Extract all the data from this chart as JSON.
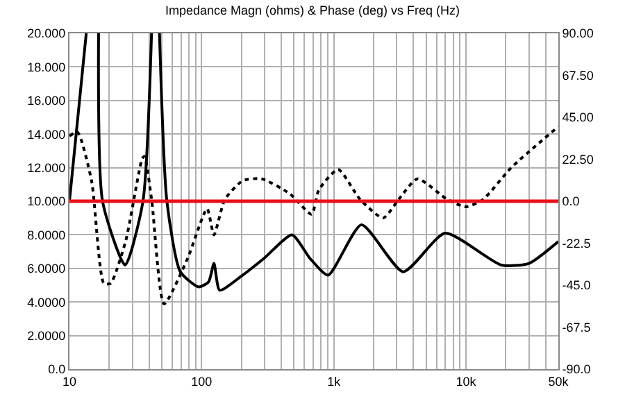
{
  "chart_data": {
    "type": "line",
    "title": "Impedance Magn (ohms) & Phase (deg) vs Freq (Hz)",
    "log": "x",
    "grid": true,
    "marker": "none",
    "xlim": [
      10,
      50000
    ],
    "xticks": [
      10,
      {
        "value": 20,
        "label": null
      },
      {
        "value": 30,
        "label": null
      },
      {
        "value": 40,
        "label": null
      },
      {
        "value": 50,
        "label": null
      },
      {
        "value": 60,
        "label": null
      },
      {
        "value": 70,
        "label": null
      },
      {
        "value": 80,
        "label": null
      },
      {
        "value": 90,
        "label": null
      },
      100,
      {
        "value": 200,
        "label": null
      },
      {
        "value": 300,
        "label": null
      },
      {
        "value": 400,
        "label": null
      },
      {
        "value": 500,
        "label": null
      },
      {
        "value": 600,
        "label": null
      },
      {
        "value": 700,
        "label": null
      },
      {
        "value": 800,
        "label": null
      },
      {
        "value": 900,
        "label": null
      },
      {
        "value": 1000,
        "label": "1k"
      },
      {
        "value": 2000,
        "label": null
      },
      {
        "value": 3000,
        "label": null
      },
      {
        "value": 4000,
        "label": null
      },
      {
        "value": 5000,
        "label": null
      },
      {
        "value": 6000,
        "label": null
      },
      {
        "value": 7000,
        "label": null
      },
      {
        "value": 8000,
        "label": null
      },
      {
        "value": 9000,
        "label": null
      },
      {
        "value": 10000,
        "label": "10k"
      },
      {
        "value": 20000,
        "label": null
      },
      {
        "value": 30000,
        "label": null
      },
      {
        "value": 40000,
        "label": null
      },
      {
        "value": 50000,
        "label": "50k"
      }
    ],
    "ylim": [
      0,
      20
    ],
    "yticks": [
      {
        "value": 0,
        "label": "0.0"
      },
      {
        "value": 2,
        "label": "2.0000"
      },
      {
        "value": 4,
        "label": "4.0000"
      },
      {
        "value": 6,
        "label": "6.0000"
      },
      {
        "value": 8,
        "label": "8.0000"
      },
      {
        "value": 10,
        "label": "10.000"
      },
      {
        "value": 12,
        "label": "12.000"
      },
      {
        "value": 14,
        "label": "14.000"
      },
      {
        "value": 16,
        "label": "16.000"
      },
      {
        "value": 18,
        "label": "18.000"
      },
      {
        "value": 20,
        "label": "20.000"
      }
    ],
    "y2lim": [
      -90,
      90
    ],
    "y2ticks": [
      {
        "value": -90,
        "label": "-90.0"
      },
      {
        "value": -67.5,
        "label": "-67.5"
      },
      {
        "value": -45,
        "label": "-45.0"
      },
      {
        "value": -22.5,
        "label": "-22.5"
      },
      {
        "value": 0,
        "label": "0.0"
      },
      {
        "value": 22.5,
        "label": "22.50"
      },
      {
        "value": 45,
        "label": "45.00"
      },
      {
        "value": 67.5,
        "label": "67.50"
      },
      {
        "value": 90,
        "label": "90.00"
      }
    ],
    "ref_lines": [
      {
        "axis": "y",
        "value": 10,
        "color": "#e8101a",
        "line_style": "solid"
      }
    ],
    "series": [
      {
        "color": "#000000",
        "line_style": "solid",
        "x": [
          10,
          13.4,
          null,
          16.6,
          17.8,
          26.4,
          36,
          41.8,
          null,
          48,
          54.6,
          69,
          95,
          113,
          124,
          137,
          197,
          297,
          483,
          660,
          906,
          1620,
          3350,
          6960,
          18500,
          30000,
          50000
        ],
        "values": [
          10,
          20,
          null,
          20,
          10,
          6.2,
          10,
          20,
          null,
          20,
          10,
          5.8,
          4.9,
          5.2,
          6.3,
          4.7,
          5.5,
          6.6,
          8.0,
          6.6,
          5.6,
          8.6,
          5.8,
          8.1,
          6.2,
          6.3,
          7.6
        ]
      },
      {
        "color": "#000000",
        "line_style": "dotted",
        "axis": "y2",
        "x": [
          10,
          11.5,
          14.7,
          18.2,
          20.5,
          26.7,
          35.6,
          37,
          42,
          52,
          78,
          110,
          124,
          150,
          205,
          285,
          465,
          680,
          770,
          1080,
          1580,
          2360,
          3100,
          4300,
          7200,
          10000,
          13500,
          22000,
          50000
        ],
        "values": [
          35,
          37,
          11,
          -44,
          -44,
          -21,
          23,
          24,
          0,
          -55,
          -31,
          -4,
          -18,
          1,
          11,
          12,
          4,
          -7,
          6,
          17,
          1,
          -9,
          1,
          12,
          1,
          -3,
          1,
          18,
          40
        ]
      }
    ]
  }
}
